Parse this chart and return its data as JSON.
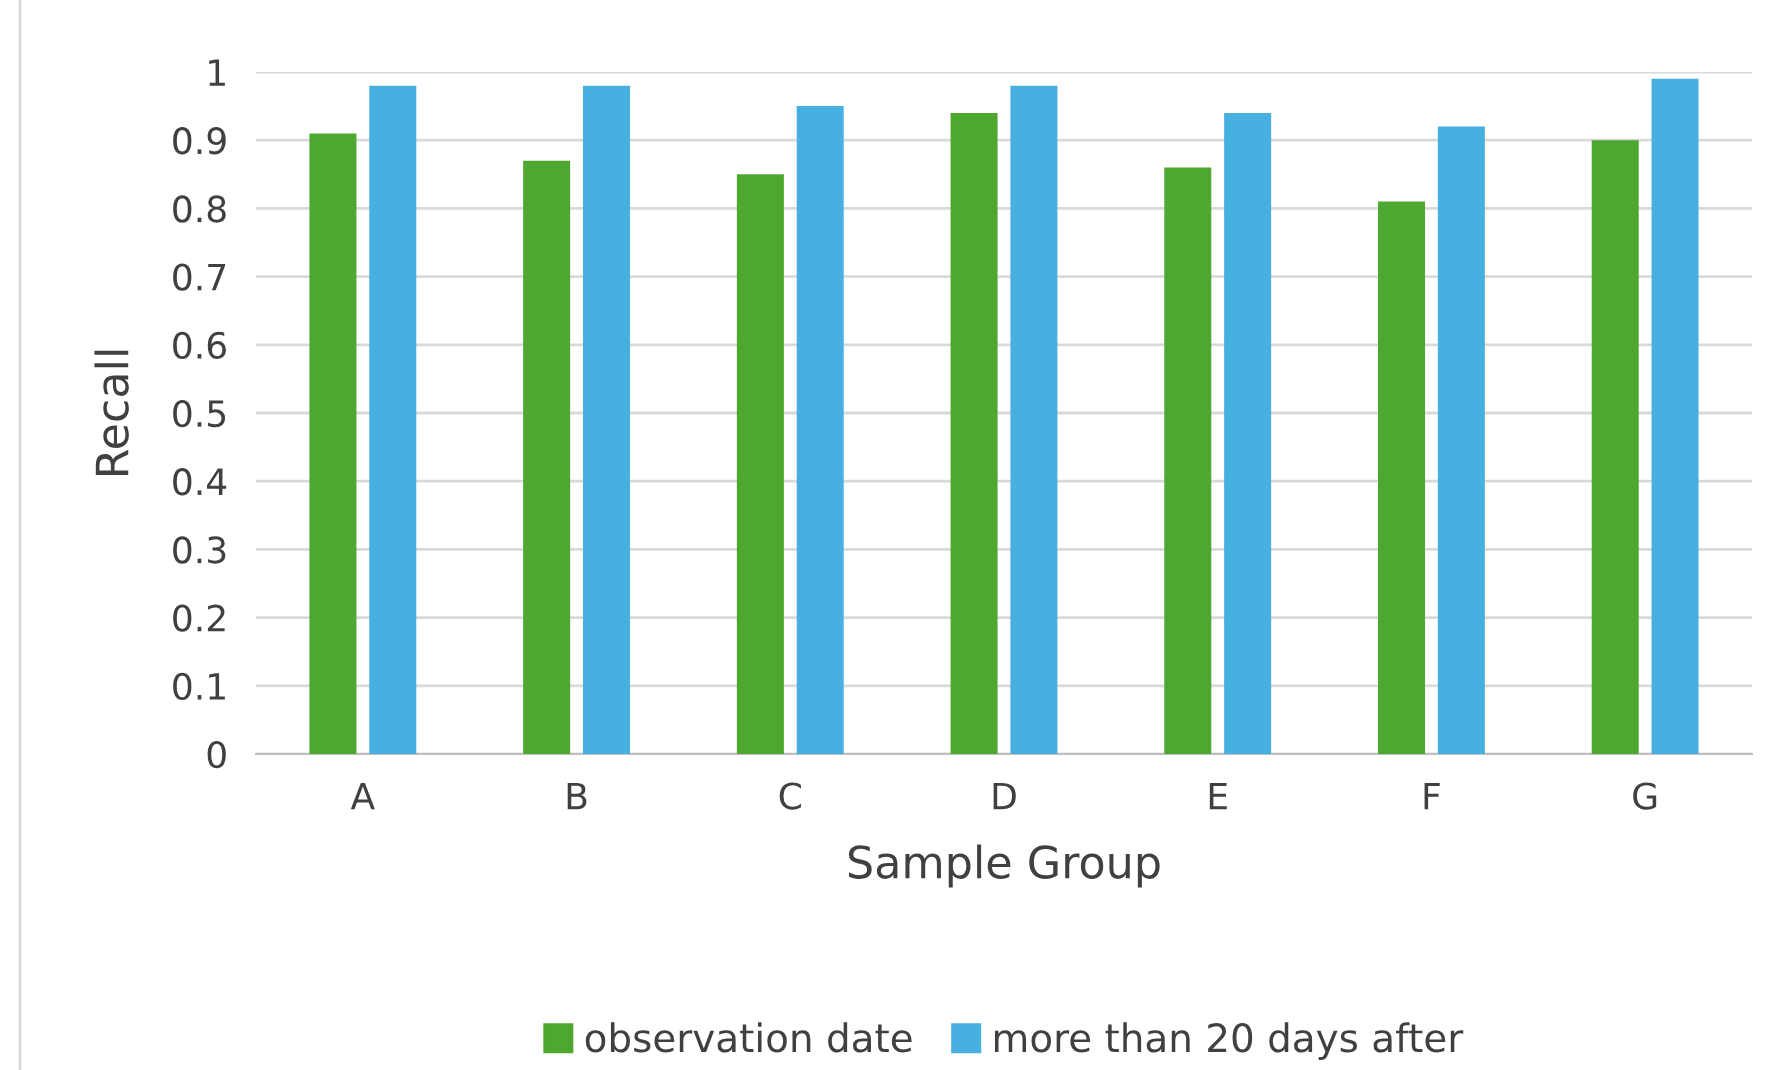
{
  "chart_data": {
    "type": "bar",
    "xlabel": "Sample Group",
    "ylabel": "Recall",
    "categories": [
      "A",
      "B",
      "C",
      "D",
      "E",
      "F",
      "G"
    ],
    "series": [
      {
        "name": "observation date",
        "color": "#4ea72e",
        "values": [
          0.91,
          0.87,
          0.85,
          0.94,
          0.86,
          0.81,
          0.9
        ]
      },
      {
        "name": "more than 20 days after",
        "color": "#47b0e0",
        "values": [
          0.98,
          0.98,
          0.95,
          0.98,
          0.94,
          0.92,
          0.99
        ]
      }
    ],
    "ylim": [
      0,
      1
    ],
    "yticks": [
      0,
      {
        "value": 0.1,
        "label": "0.1"
      },
      {
        "value": 0.2,
        "label": "0.2"
      },
      {
        "value": 0.3,
        "label": "0.3"
      },
      {
        "value": 0.4,
        "label": "0.4"
      },
      {
        "value": 0.5,
        "label": "0.5"
      },
      {
        "value": 0.6,
        "label": "0.6"
      },
      {
        "value": 0.7,
        "label": "0.7"
      },
      {
        "value": 0.8,
        "label": "0.8"
      },
      {
        "value": 0.9,
        "label": "0.9"
      },
      1
    ],
    "grid": "y",
    "legend": "bottom"
  }
}
